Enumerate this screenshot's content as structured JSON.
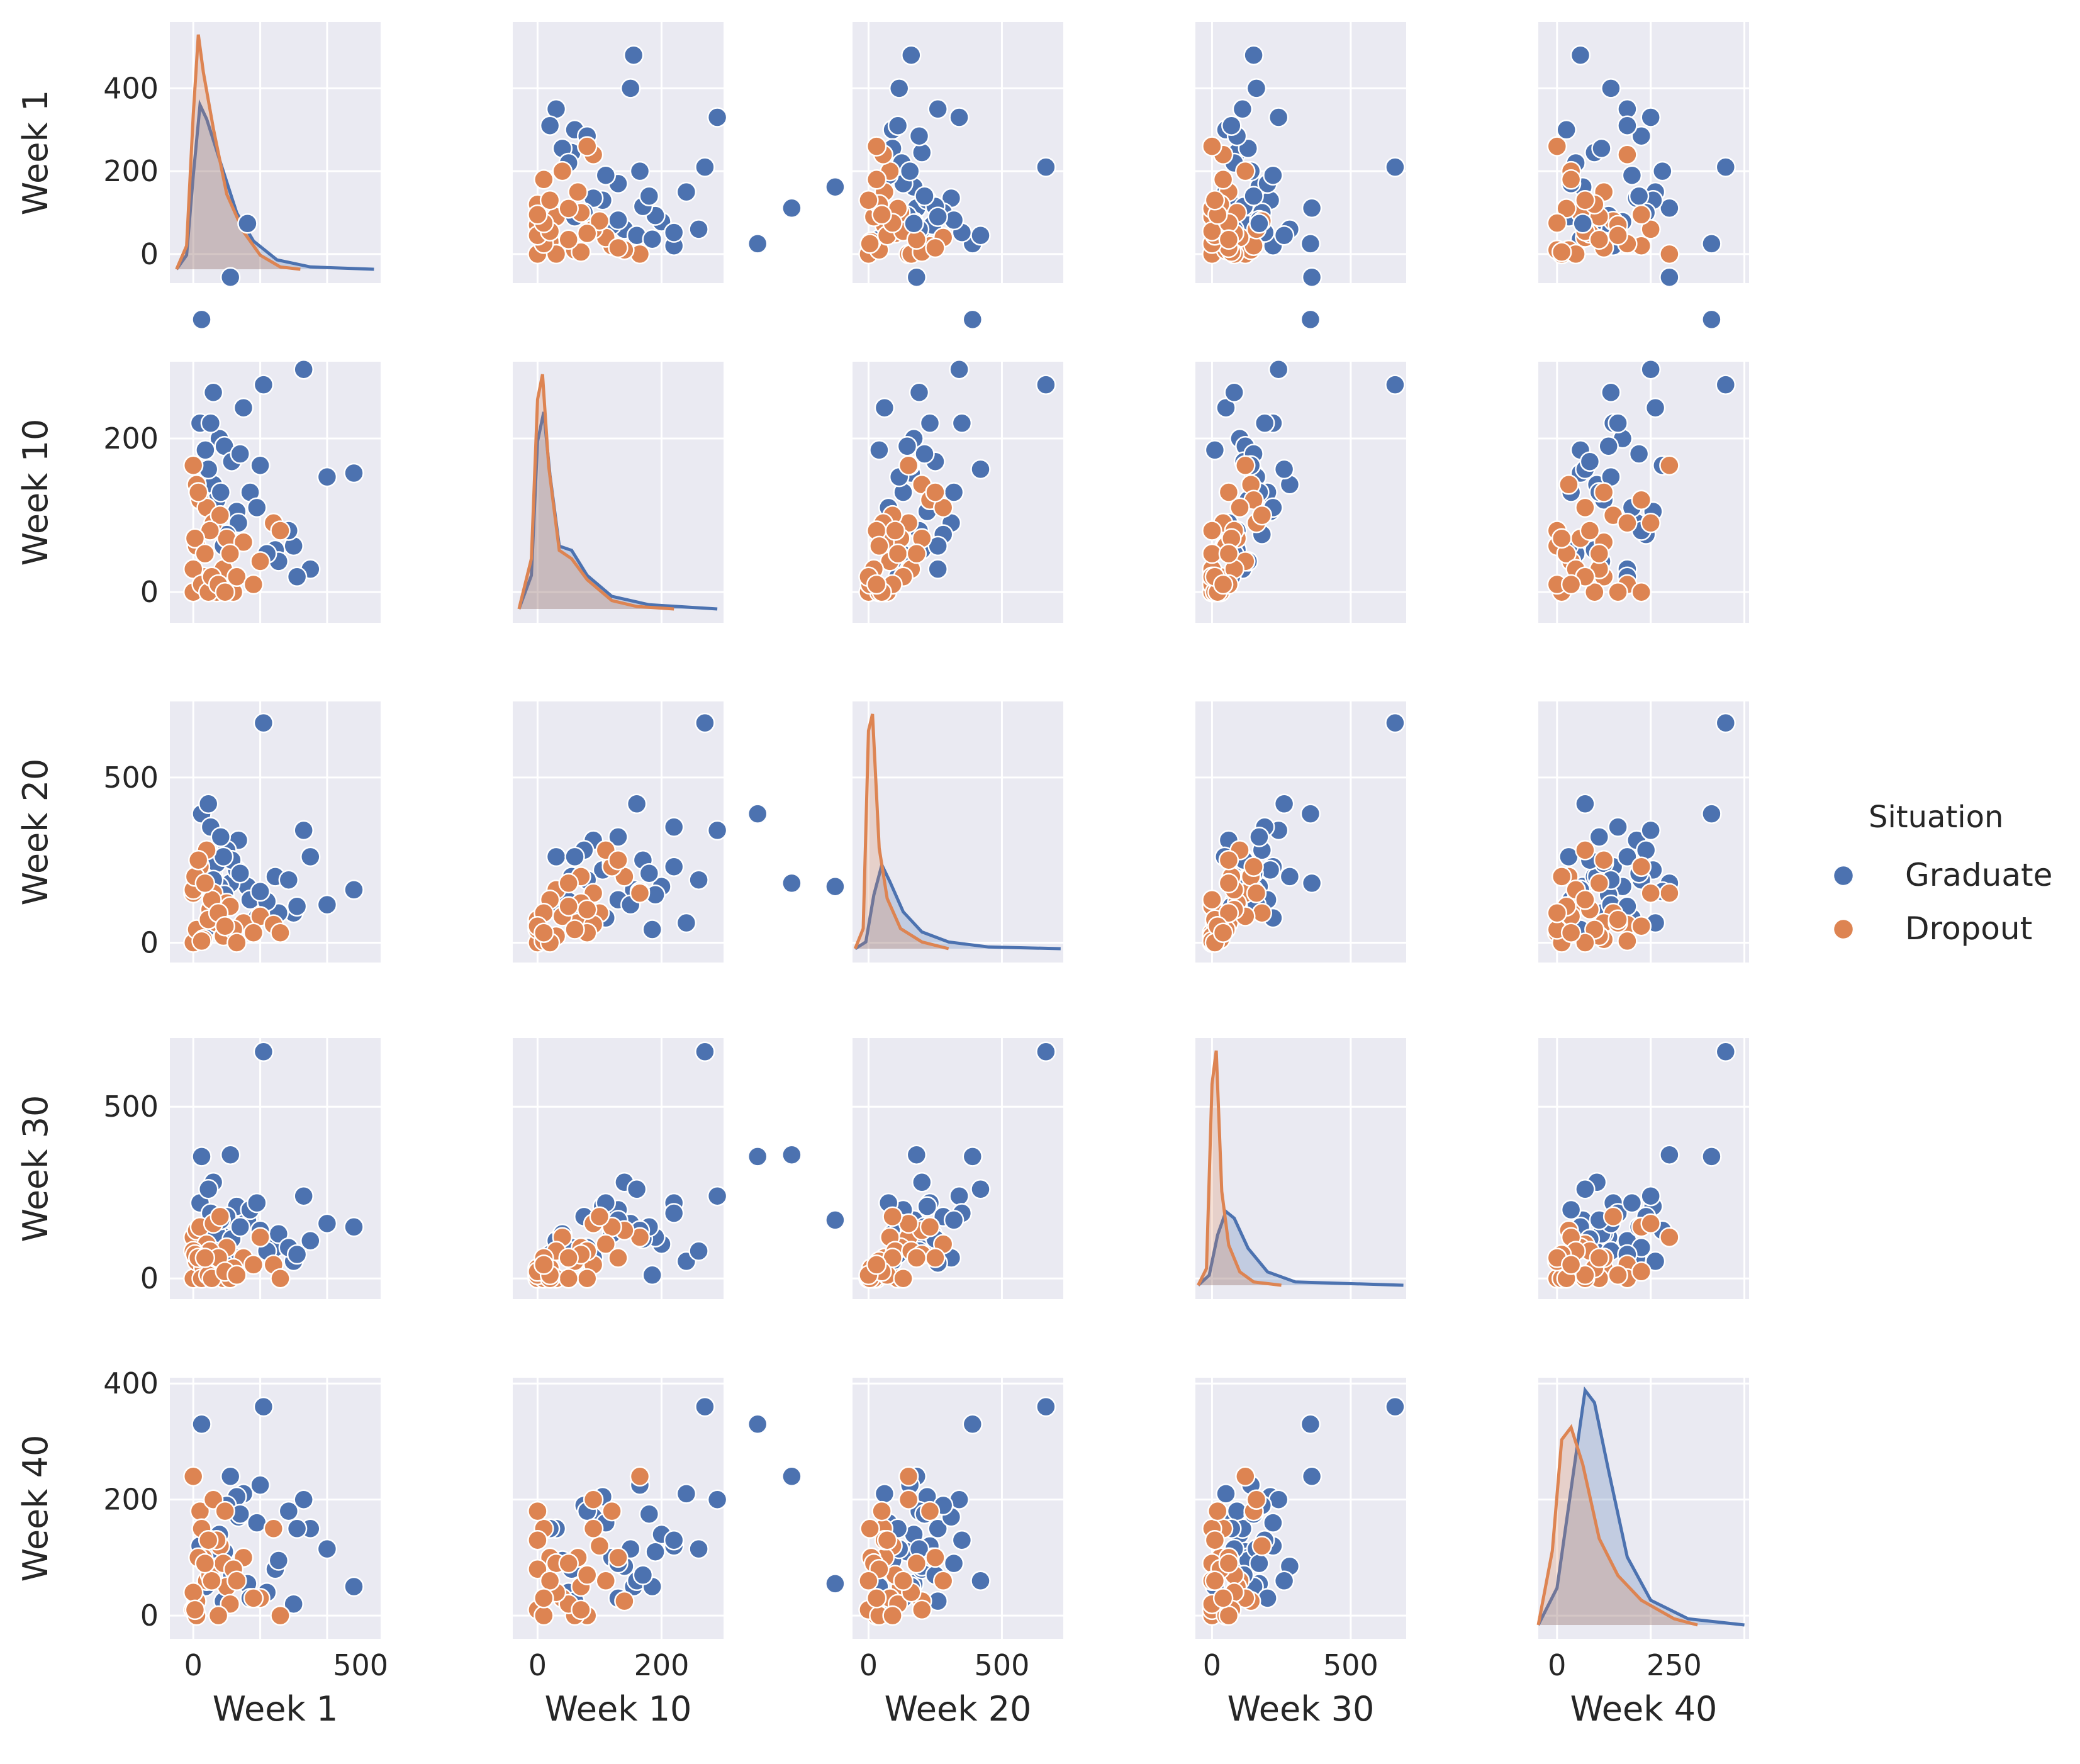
{
  "chart_data": {
    "type": "scatter",
    "title": "",
    "variables": [
      "Week 1",
      "Week 10",
      "Week 20",
      "Week 30",
      "Week 40"
    ],
    "ranges": {
      "Week 1": [
        -70,
        560
      ],
      "Week 10": [
        -40,
        300
      ],
      "Week 20": [
        -60,
        730
      ],
      "Week 30": [
        -60,
        700
      ],
      "Week 40": [
        -40,
        410
      ]
    },
    "ticks": {
      "Week 1": [
        0,
        200,
        400
      ],
      "Week 10": [
        0,
        200
      ],
      "Week 20": [
        0,
        500
      ],
      "Week 30": [
        0,
        500
      ],
      "Week 40": [
        0,
        200,
        400
      ]
    },
    "bottom_ticks": {
      "Week 1": [
        0,
        500
      ],
      "Week 10": [
        0,
        200
      ],
      "Week 20": [
        0,
        500
      ],
      "Week 30": [
        0,
        500
      ],
      "Week 40": [
        0,
        250
      ]
    },
    "legend": {
      "title": "Situation",
      "position": "right",
      "entries": [
        {
          "name": "Graduate",
          "color": "#4c72b0"
        },
        {
          "name": "Dropout",
          "color": "#dd8452"
        }
      ]
    },
    "series": [
      {
        "name": "Graduate",
        "color": "#4c72b0",
        "points": [
          [
            162,
            480,
            170,
            170,
            55
          ],
          [
            111,
            410,
            180,
            360,
            240
          ],
          [
            25,
            355,
            390,
            355,
            330
          ],
          [
            20,
            220,
            230,
            220,
            120
          ],
          [
            245,
            55,
            200,
            90,
            80
          ],
          [
            480,
            155,
            160,
            150,
            50
          ],
          [
            150,
            240,
            60,
            50,
            210
          ],
          [
            78,
            200,
            170,
            100,
            140
          ],
          [
            93,
            190,
            145,
            120,
            110
          ],
          [
            130,
            105,
            220,
            210,
            205
          ],
          [
            300,
            60,
            90,
            50,
            20
          ],
          [
            60,
            140,
            200,
            280,
            85
          ],
          [
            350,
            30,
            260,
            110,
            150
          ],
          [
            135,
            90,
            310,
            60,
            170
          ],
          [
            70,
            120,
            240,
            130,
            100
          ],
          [
            330,
            290,
            340,
            240,
            200
          ],
          [
            45,
            160,
            420,
            260,
            60
          ],
          [
            210,
            270,
            665,
            660,
            360
          ],
          [
            36,
            185,
            40,
            10,
            50
          ],
          [
            255,
            40,
            90,
            130,
            95
          ],
          [
            100,
            75,
            280,
            180,
            190
          ],
          [
            170,
            130,
            130,
            200,
            30
          ],
          [
            400,
            150,
            115,
            160,
            115
          ],
          [
            52,
            220,
            350,
            190,
            130
          ],
          [
            190,
            110,
            75,
            220,
            160
          ],
          [
            285,
            80,
            190,
            90,
            180
          ],
          [
            115,
            170,
            250,
            115,
            70
          ],
          [
            220,
            50,
            125,
            80,
            40
          ],
          [
            140,
            180,
            210,
            150,
            175
          ],
          [
            82,
            130,
            320,
            170,
            90
          ],
          [
            200,
            165,
            155,
            140,
            225
          ],
          [
            60,
            260,
            190,
            80,
            115
          ],
          [
            310,
            20,
            110,
            70,
            150
          ],
          [
            90,
            60,
            260,
            45,
            25
          ]
        ]
      },
      {
        "name": "Dropout",
        "color": "#dd8452",
        "points": [
          [
            0,
            165,
            150,
            120,
            240
          ],
          [
            10,
            140,
            200,
            140,
            25
          ],
          [
            20,
            120,
            230,
            150,
            180
          ],
          [
            40,
            110,
            280,
            100,
            60
          ],
          [
            60,
            90,
            150,
            160,
            200
          ],
          [
            80,
            100,
            90,
            180,
            120
          ],
          [
            100,
            70,
            120,
            90,
            50
          ],
          [
            150,
            65,
            60,
            60,
            100
          ],
          [
            200,
            40,
            80,
            120,
            30
          ],
          [
            240,
            90,
            55,
            40,
            150
          ],
          [
            260,
            80,
            30,
            0,
            0
          ],
          [
            0,
            0,
            0,
            0,
            10
          ],
          [
            10,
            60,
            40,
            50,
            0
          ],
          [
            30,
            20,
            10,
            30,
            100
          ],
          [
            50,
            80,
            100,
            80,
            70
          ],
          [
            70,
            0,
            60,
            10,
            130
          ],
          [
            90,
            30,
            20,
            0,
            90
          ],
          [
            110,
            50,
            110,
            0,
            20
          ],
          [
            120,
            0,
            40,
            30,
            80
          ],
          [
            0,
            30,
            160,
            80,
            40
          ],
          [
            5,
            70,
            200,
            70,
            10
          ],
          [
            15,
            130,
            250,
            60,
            100
          ],
          [
            25,
            10,
            5,
            0,
            150
          ],
          [
            45,
            0,
            70,
            10,
            130
          ],
          [
            55,
            20,
            130,
            0,
            60
          ],
          [
            75,
            10,
            90,
            60,
            0
          ],
          [
            95,
            0,
            50,
            20,
            180
          ],
          [
            130,
            20,
            0,
            10,
            60
          ],
          [
            180,
            10,
            30,
            40,
            30
          ],
          [
            35,
            50,
            180,
            60,
            90
          ]
        ]
      }
    ],
    "kde": {
      "Week 1": {
        "Graduate": [
          [
            -50,
            0
          ],
          [
            -20,
            30
          ],
          [
            0,
            200
          ],
          [
            20,
            350
          ],
          [
            40,
            320
          ],
          [
            80,
            230
          ],
          [
            130,
            120
          ],
          [
            180,
            60
          ],
          [
            250,
            20
          ],
          [
            350,
            5
          ],
          [
            540,
            0
          ]
        ],
        "Dropout": [
          [
            -50,
            0
          ],
          [
            -20,
            50
          ],
          [
            0,
            330
          ],
          [
            15,
            500
          ],
          [
            30,
            420
          ],
          [
            60,
            300
          ],
          [
            100,
            160
          ],
          [
            150,
            80
          ],
          [
            200,
            30
          ],
          [
            260,
            5
          ],
          [
            320,
            0
          ]
        ]
      },
      "Week 10": {
        "Graduate": [
          [
            -30,
            0
          ],
          [
            -10,
            40
          ],
          [
            0,
            200
          ],
          [
            10,
            235
          ],
          [
            20,
            160
          ],
          [
            35,
            75
          ],
          [
            55,
            70
          ],
          [
            80,
            40
          ],
          [
            120,
            15
          ],
          [
            180,
            5
          ],
          [
            290,
            0
          ]
        ],
        "Dropout": [
          [
            -30,
            0
          ],
          [
            -10,
            60
          ],
          [
            0,
            250
          ],
          [
            8,
            280
          ],
          [
            18,
            170
          ],
          [
            35,
            70
          ],
          [
            55,
            60
          ],
          [
            80,
            35
          ],
          [
            120,
            10
          ],
          [
            160,
            3
          ],
          [
            220,
            0
          ]
        ]
      },
      "Week 20": {
        "Graduate": [
          [
            -50,
            0
          ],
          [
            -10,
            20
          ],
          [
            20,
            160
          ],
          [
            50,
            250
          ],
          [
            80,
            200
          ],
          [
            130,
            110
          ],
          [
            200,
            50
          ],
          [
            300,
            20
          ],
          [
            450,
            5
          ],
          [
            720,
            0
          ]
        ],
        "Dropout": [
          [
            -50,
            0
          ],
          [
            -20,
            60
          ],
          [
            0,
            650
          ],
          [
            15,
            700
          ],
          [
            40,
            300
          ],
          [
            70,
            150
          ],
          [
            120,
            60
          ],
          [
            200,
            20
          ],
          [
            300,
            0
          ]
        ]
      },
      "Week 30": {
        "Graduate": [
          [
            -50,
            0
          ],
          [
            -10,
            30
          ],
          [
            20,
            150
          ],
          [
            50,
            220
          ],
          [
            80,
            200
          ],
          [
            130,
            110
          ],
          [
            200,
            40
          ],
          [
            300,
            10
          ],
          [
            690,
            0
          ]
        ],
        "Dropout": [
          [
            -50,
            0
          ],
          [
            -20,
            50
          ],
          [
            0,
            600
          ],
          [
            15,
            700
          ],
          [
            35,
            280
          ],
          [
            60,
            120
          ],
          [
            100,
            40
          ],
          [
            150,
            10
          ],
          [
            250,
            0
          ]
        ]
      },
      "Week 40": {
        "Graduate": [
          [
            -40,
            0
          ],
          [
            0,
            60
          ],
          [
            30,
            220
          ],
          [
            60,
            380
          ],
          [
            80,
            360
          ],
          [
            110,
            250
          ],
          [
            150,
            110
          ],
          [
            200,
            40
          ],
          [
            280,
            10
          ],
          [
            400,
            0
          ]
        ],
        "Dropout": [
          [
            -40,
            0
          ],
          [
            -10,
            120
          ],
          [
            10,
            300
          ],
          [
            30,
            320
          ],
          [
            55,
            260
          ],
          [
            90,
            140
          ],
          [
            130,
            80
          ],
          [
            180,
            40
          ],
          [
            250,
            10
          ],
          [
            300,
            0
          ]
        ]
      }
    }
  }
}
